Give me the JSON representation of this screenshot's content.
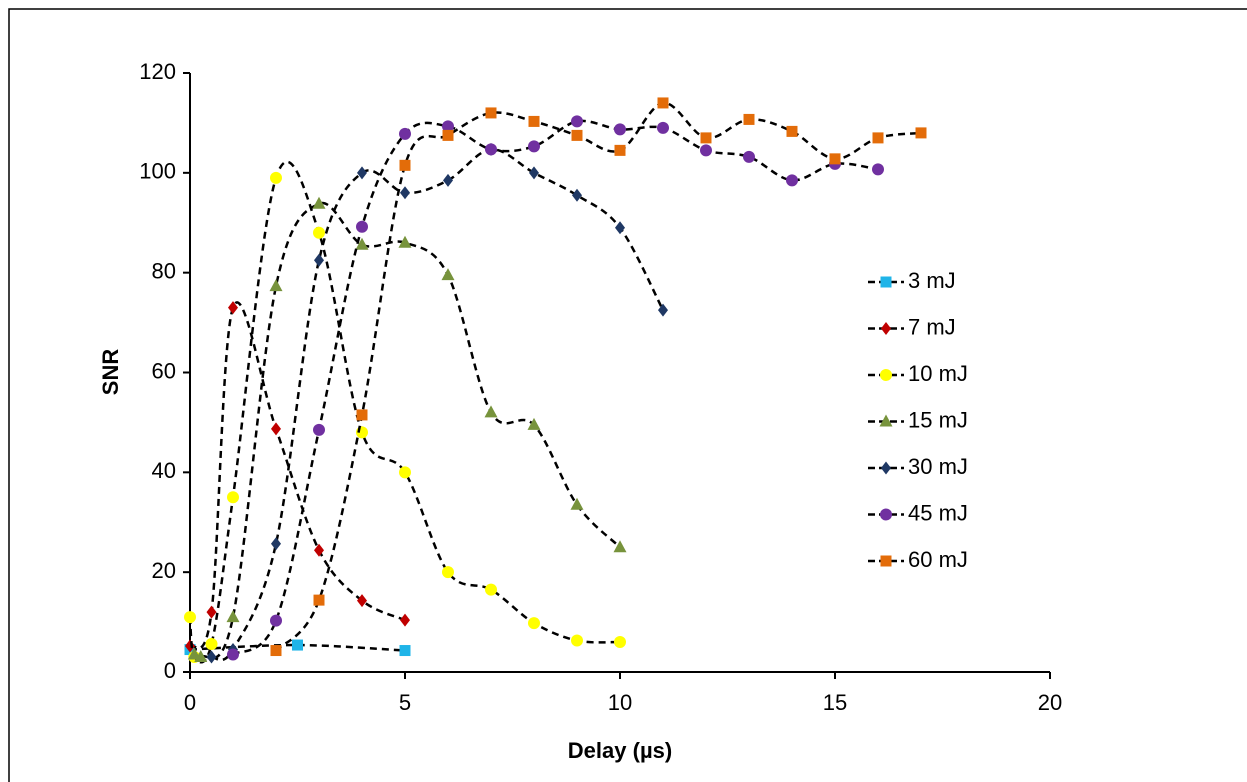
{
  "chart_data": {
    "type": "scatter",
    "line_style": "smooth-dashed",
    "x_label": "Delay (µs)",
    "y_label": "SNR",
    "xlim": [
      0,
      20
    ],
    "xticks": [
      0,
      5,
      10,
      15,
      20
    ],
    "ylim": [
      0,
      120
    ],
    "yticks": [
      0,
      20,
      40,
      60,
      80,
      100,
      120
    ],
    "grid": false,
    "legend": "right",
    "series": [
      {
        "name": "3 mJ",
        "color": "#1fb4e8",
        "marker": "square",
        "x": [
          0,
          2.5,
          5
        ],
        "values": [
          4.5,
          5.4,
          4.3
        ]
      },
      {
        "name": "7 mJ",
        "color": "#c00000",
        "marker": "diamond",
        "x": [
          0,
          0.5,
          1,
          2,
          3,
          4,
          5
        ],
        "values": [
          5.2,
          12,
          73,
          48.7,
          24.4,
          14.3,
          10.4
        ]
      },
      {
        "name": "10 mJ",
        "color": "#ffff00",
        "marker": "circle",
        "x": [
          0,
          0.1,
          0.5,
          1,
          2,
          3,
          4,
          5,
          6,
          7,
          8,
          9,
          10
        ],
        "values": [
          11,
          3,
          5.6,
          35,
          99,
          88,
          48,
          40,
          20,
          16.5,
          9.8,
          6.3,
          6
        ]
      },
      {
        "name": "15 mJ",
        "color": "#77933c",
        "marker": "triangle",
        "x": [
          0.1,
          0.25,
          1,
          2,
          3,
          4,
          5,
          6,
          7,
          8,
          9,
          10
        ],
        "values": [
          3.5,
          3,
          11,
          77.3,
          93.8,
          85.6,
          86,
          79.5,
          52,
          49.5,
          33.5,
          25
        ]
      },
      {
        "name": "30 mJ",
        "color": "#1f3864",
        "marker": "diamond",
        "x": [
          0.5,
          1,
          2,
          3,
          4,
          5,
          6,
          7,
          8,
          9,
          10,
          11
        ],
        "values": [
          3,
          4.5,
          25.7,
          82.5,
          100,
          96,
          98.5,
          104.7,
          100,
          95.5,
          89,
          72.5
        ]
      },
      {
        "name": "45 mJ",
        "color": "#7030a0",
        "marker": "circle",
        "x": [
          1,
          2,
          3,
          4,
          5,
          6,
          7,
          8,
          9,
          10,
          11,
          12,
          13,
          14,
          15,
          16
        ],
        "values": [
          3.5,
          10.3,
          48.5,
          89.2,
          107.8,
          109.3,
          104.7,
          105.3,
          110.3,
          108.7,
          109,
          104.5,
          103.2,
          98.5,
          101.8,
          100.7
        ]
      },
      {
        "name": "60 mJ",
        "color": "#e36c09",
        "marker": "square",
        "x": [
          2,
          3,
          4,
          5,
          6,
          7,
          8,
          9,
          10,
          11,
          12,
          13,
          14,
          15,
          16,
          17
        ],
        "values": [
          4.3,
          14.4,
          51.5,
          101.5,
          107.5,
          112,
          110.3,
          107.5,
          104.5,
          114,
          107,
          110.7,
          108.3,
          102.8,
          107,
          108
        ]
      }
    ]
  }
}
